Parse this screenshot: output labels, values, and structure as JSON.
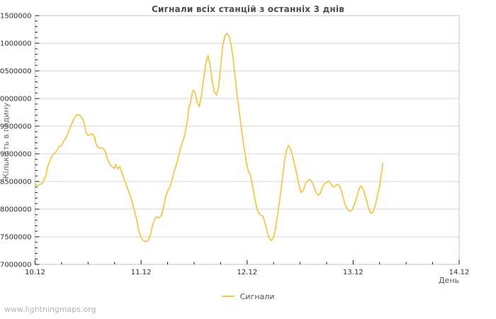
{
  "watermark": "www.lightningmaps.org",
  "colors": {
    "line": "#EFC94C",
    "grid": "#d6d6d6",
    "border": "#c6c6c6",
    "tick": "#1a1a1a",
    "tick_label": "#2e2e2e",
    "title": "#4d4d4d",
    "axis_label": "#6b6b6b",
    "legend_text": "#555555",
    "watermark": "#b3b3b3"
  },
  "chart_data": {
    "type": "line",
    "title": "Сигнали всіх станцій з останніх 3 днів",
    "xlabel": "День",
    "ylabel": "Кількість в годину",
    "grid": true,
    "legend": {
      "position": "bottom-center",
      "entries": [
        {
          "label": "Сигнали",
          "color": "#EFC94C"
        }
      ]
    },
    "ylim": [
      7000000,
      11500000
    ],
    "xlim_days": [
      0,
      4
    ],
    "y_major_step": 500000,
    "y_minor_step": 100000,
    "x_minor_step_days": 0.25,
    "y_ticks": [
      {
        "value": 11500000,
        "label": "11500000"
      },
      {
        "value": 11000000,
        "label": "11000000"
      },
      {
        "value": 10500000,
        "label": "10500000"
      },
      {
        "value": 10000000,
        "label": "10000000"
      },
      {
        "value": 9500000,
        "label": "9500000"
      },
      {
        "value": 9000000,
        "label": "9000000"
      },
      {
        "value": 8500000,
        "label": "8500000"
      },
      {
        "value": 8000000,
        "label": "8000000"
      },
      {
        "value": 7500000,
        "label": "7500000"
      },
      {
        "value": 7000000,
        "label": "7000000"
      }
    ],
    "x_ticks": [
      {
        "days": 0,
        "label": "10.12"
      },
      {
        "days": 1,
        "label": "11.12"
      },
      {
        "days": 2,
        "label": "12.12"
      },
      {
        "days": 3,
        "label": "13.12"
      },
      {
        "days": 4,
        "label": "14.12"
      }
    ],
    "series": [
      {
        "name": "Сигнали",
        "color": "#EFC94C",
        "points": [
          [
            0.0,
            8460000
          ],
          [
            0.02,
            8420000
          ],
          [
            0.04,
            8440000
          ],
          [
            0.07,
            8470000
          ],
          [
            0.1,
            8600000
          ],
          [
            0.12,
            8770000
          ],
          [
            0.15,
            8920000
          ],
          [
            0.17,
            8990000
          ],
          [
            0.19,
            9010000
          ],
          [
            0.21,
            9080000
          ],
          [
            0.23,
            9140000
          ],
          [
            0.25,
            9150000
          ],
          [
            0.27,
            9230000
          ],
          [
            0.3,
            9320000
          ],
          [
            0.32,
            9430000
          ],
          [
            0.35,
            9560000
          ],
          [
            0.37,
            9650000
          ],
          [
            0.39,
            9700000
          ],
          [
            0.41,
            9710000
          ],
          [
            0.43,
            9680000
          ],
          [
            0.46,
            9590000
          ],
          [
            0.48,
            9390000
          ],
          [
            0.5,
            9330000
          ],
          [
            0.52,
            9350000
          ],
          [
            0.54,
            9360000
          ],
          [
            0.56,
            9310000
          ],
          [
            0.57,
            9210000
          ],
          [
            0.59,
            9120000
          ],
          [
            0.61,
            9100000
          ],
          [
            0.63,
            9110000
          ],
          [
            0.66,
            9060000
          ],
          [
            0.67,
            8990000
          ],
          [
            0.69,
            8870000
          ],
          [
            0.71,
            8800000
          ],
          [
            0.73,
            8760000
          ],
          [
            0.75,
            8740000
          ],
          [
            0.76,
            8810000
          ],
          [
            0.78,
            8730000
          ],
          [
            0.8,
            8770000
          ],
          [
            0.82,
            8650000
          ],
          [
            0.84,
            8540000
          ],
          [
            0.86,
            8440000
          ],
          [
            0.88,
            8330000
          ],
          [
            0.9,
            8230000
          ],
          [
            0.92,
            8090000
          ],
          [
            0.94,
            7960000
          ],
          [
            0.96,
            7800000
          ],
          [
            0.98,
            7600000
          ],
          [
            1.0,
            7480000
          ],
          [
            1.02,
            7430000
          ],
          [
            1.05,
            7410000
          ],
          [
            1.07,
            7440000
          ],
          [
            1.09,
            7550000
          ],
          [
            1.11,
            7720000
          ],
          [
            1.13,
            7830000
          ],
          [
            1.15,
            7860000
          ],
          [
            1.17,
            7840000
          ],
          [
            1.19,
            7880000
          ],
          [
            1.21,
            8010000
          ],
          [
            1.23,
            8200000
          ],
          [
            1.25,
            8330000
          ],
          [
            1.27,
            8390000
          ],
          [
            1.29,
            8520000
          ],
          [
            1.31,
            8670000
          ],
          [
            1.33,
            8790000
          ],
          [
            1.35,
            8930000
          ],
          [
            1.37,
            9090000
          ],
          [
            1.39,
            9220000
          ],
          [
            1.4,
            9260000
          ],
          [
            1.42,
            9420000
          ],
          [
            1.44,
            9640000
          ],
          [
            1.46,
            9870000
          ],
          [
            1.48,
            10070000
          ],
          [
            1.45,
            9850000
          ],
          [
            1.49,
            10150000
          ],
          [
            1.51,
            10110000
          ],
          [
            1.53,
            9920000
          ],
          [
            1.55,
            9850000
          ],
          [
            1.57,
            10060000
          ],
          [
            1.59,
            10350000
          ],
          [
            1.61,
            10620000
          ],
          [
            1.63,
            10780000
          ],
          [
            1.65,
            10620000
          ],
          [
            1.67,
            10330000
          ],
          [
            1.69,
            10130000
          ],
          [
            1.71,
            10060000
          ],
          [
            1.73,
            10200000
          ],
          [
            1.75,
            10550000
          ],
          [
            1.77,
            10950000
          ],
          [
            1.79,
            11130000
          ],
          [
            1.81,
            11180000
          ],
          [
            1.83,
            11130000
          ],
          [
            1.85,
            10960000
          ],
          [
            1.87,
            10700000
          ],
          [
            1.89,
            10340000
          ],
          [
            1.91,
            9990000
          ],
          [
            1.93,
            9700000
          ],
          [
            1.95,
            9400000
          ],
          [
            1.97,
            9120000
          ],
          [
            1.99,
            8870000
          ],
          [
            2.01,
            8700000
          ],
          [
            2.03,
            8620000
          ],
          [
            2.05,
            8450000
          ],
          [
            2.07,
            8220000
          ],
          [
            2.09,
            8030000
          ],
          [
            2.11,
            7930000
          ],
          [
            2.13,
            7890000
          ],
          [
            2.15,
            7870000
          ],
          [
            2.17,
            7740000
          ],
          [
            2.19,
            7580000
          ],
          [
            2.21,
            7470000
          ],
          [
            2.23,
            7430000
          ],
          [
            2.25,
            7500000
          ],
          [
            2.27,
            7670000
          ],
          [
            2.29,
            7920000
          ],
          [
            2.31,
            8200000
          ],
          [
            2.33,
            8500000
          ],
          [
            2.35,
            8830000
          ],
          [
            2.37,
            9060000
          ],
          [
            2.39,
            9150000
          ],
          [
            2.41,
            9090000
          ],
          [
            2.43,
            8950000
          ],
          [
            2.45,
            8790000
          ],
          [
            2.47,
            8620000
          ],
          [
            2.49,
            8420000
          ],
          [
            2.51,
            8300000
          ],
          [
            2.53,
            8340000
          ],
          [
            2.55,
            8450000
          ],
          [
            2.57,
            8510000
          ],
          [
            2.59,
            8540000
          ],
          [
            2.61,
            8500000
          ],
          [
            2.63,
            8410000
          ],
          [
            2.65,
            8300000
          ],
          [
            2.67,
            8250000
          ],
          [
            2.69,
            8290000
          ],
          [
            2.71,
            8400000
          ],
          [
            2.73,
            8460000
          ],
          [
            2.75,
            8480000
          ],
          [
            2.77,
            8510000
          ],
          [
            2.79,
            8460000
          ],
          [
            2.81,
            8400000
          ],
          [
            2.83,
            8410000
          ],
          [
            2.85,
            8450000
          ],
          [
            2.87,
            8430000
          ],
          [
            2.89,
            8330000
          ],
          [
            2.91,
            8180000
          ],
          [
            2.93,
            8050000
          ],
          [
            2.95,
            7990000
          ],
          [
            2.97,
            7960000
          ],
          [
            2.99,
            7980000
          ],
          [
            3.01,
            8070000
          ],
          [
            3.03,
            8190000
          ],
          [
            3.05,
            8330000
          ],
          [
            3.07,
            8420000
          ],
          [
            3.09,
            8380000
          ],
          [
            3.11,
            8270000
          ],
          [
            3.13,
            8130000
          ],
          [
            3.15,
            7990000
          ],
          [
            3.17,
            7920000
          ],
          [
            3.19,
            7950000
          ],
          [
            3.21,
            8080000
          ],
          [
            3.23,
            8250000
          ],
          [
            3.25,
            8420000
          ],
          [
            3.26,
            8560000
          ],
          [
            3.27,
            8680000
          ],
          [
            3.28,
            8830000
          ]
        ]
      }
    ]
  }
}
